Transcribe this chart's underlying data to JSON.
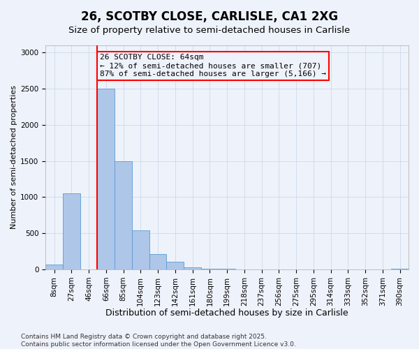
{
  "title": "26, SCOTBY CLOSE, CARLISLE, CA1 2XG",
  "subtitle": "Size of property relative to semi-detached houses in Carlisle",
  "xlabel": "Distribution of semi-detached houses by size in Carlisle",
  "ylabel": "Number of semi-detached properties",
  "categories": [
    "8sqm",
    "27sqm",
    "46sqm",
    "66sqm",
    "85sqm",
    "104sqm",
    "123sqm",
    "142sqm",
    "161sqm",
    "180sqm",
    "199sqm",
    "218sqm",
    "237sqm",
    "256sqm",
    "275sqm",
    "295sqm",
    "314sqm",
    "333sqm",
    "352sqm",
    "371sqm",
    "390sqm"
  ],
  "values": [
    70,
    1050,
    0,
    2500,
    1500,
    540,
    215,
    110,
    30,
    10,
    5,
    2,
    1,
    0,
    0,
    0,
    0,
    0,
    0,
    0,
    5
  ],
  "bar_color": "#aec6e8",
  "bar_edge_color": "#5b9bd5",
  "vline_color": "red",
  "vline_x_index": 2.5,
  "annotation_text": "26 SCOTBY CLOSE: 64sqm\n← 12% of semi-detached houses are smaller (707)\n87% of semi-detached houses are larger (5,166) →",
  "annotation_box_color": "red",
  "ylim": [
    0,
    3100
  ],
  "yticks": [
    0,
    500,
    1000,
    1500,
    2000,
    2500,
    3000
  ],
  "grid_color": "#c8d4e8",
  "bg_color": "#eef2fa",
  "footer": "Contains HM Land Registry data © Crown copyright and database right 2025.\nContains public sector information licensed under the Open Government Licence v3.0.",
  "title_fontsize": 12,
  "subtitle_fontsize": 9.5,
  "xlabel_fontsize": 9,
  "ylabel_fontsize": 8,
  "tick_fontsize": 7.5,
  "annotation_fontsize": 8,
  "footer_fontsize": 6.5
}
